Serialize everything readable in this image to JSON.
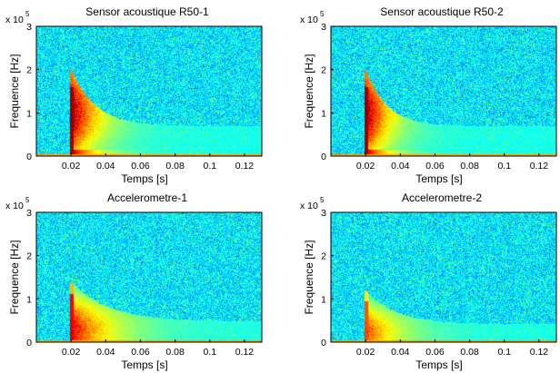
{
  "chart_data": [
    {
      "type": "heatmap",
      "title": "Sensor acoustique R50-1",
      "xlabel": "Temps [s]",
      "ylabel": "Frequence [Hz]",
      "x_ticks": [
        "0.02",
        "0.04",
        "0.06",
        "0.08",
        "0.1",
        "0.12"
      ],
      "y_ticks": [
        "0",
        "1",
        "2",
        "3"
      ],
      "y_multiplier": "x 10",
      "y_multiplier_exp": "5",
      "xlim": [
        0,
        0.13
      ],
      "ylim": [
        0,
        300000
      ],
      "burst": {
        "onset_s": 0.02,
        "peak_freq_hz": 100000,
        "max_freq_hz": 200000,
        "decay_end_s": 0.06,
        "intensity": 1.0
      }
    },
    {
      "type": "heatmap",
      "title": "Sensor acoustique R50-2",
      "xlabel": "Temps [s]",
      "ylabel": "Frequence [Hz]",
      "x_ticks": [
        "0.02",
        "0.04",
        "0.06",
        "0.08",
        "0.1",
        "0.12"
      ],
      "y_ticks": [
        "0",
        "1",
        "2",
        "3"
      ],
      "y_multiplier": "x 10",
      "y_multiplier_exp": "5",
      "xlim": [
        0,
        0.13
      ],
      "ylim": [
        0,
        300000
      ],
      "burst": {
        "onset_s": 0.02,
        "peak_freq_hz": 100000,
        "max_freq_hz": 200000,
        "decay_end_s": 0.055,
        "intensity": 1.0
      }
    },
    {
      "type": "heatmap",
      "title": "Accelerometre-1",
      "xlabel": "Temps [s]",
      "ylabel": "Frequence [Hz]",
      "x_ticks": [
        "0.02",
        "0.04",
        "0.06",
        "0.08",
        "0.1",
        "0.12"
      ],
      "y_ticks": [
        "0",
        "1",
        "2",
        "3"
      ],
      "y_multiplier": "x 10",
      "y_multiplier_exp": "5",
      "xlim": [
        0,
        0.13
      ],
      "ylim": [
        0,
        300000
      ],
      "burst": {
        "onset_s": 0.02,
        "peak_freq_hz": 30000,
        "max_freq_hz": 140000,
        "decay_end_s": 0.08,
        "intensity": 0.85
      }
    },
    {
      "type": "heatmap",
      "title": "Accelerometre-2",
      "xlabel": "Temps [s]",
      "ylabel": "Frequence [Hz]",
      "x_ticks": [
        "0.02",
        "0.04",
        "0.06",
        "0.08",
        "0.1",
        "0.12"
      ],
      "y_ticks": [
        "0",
        "1",
        "2",
        "3"
      ],
      "y_multiplier": "x 10",
      "y_multiplier_exp": "5",
      "xlim": [
        0,
        0.13
      ],
      "ylim": [
        0,
        300000
      ],
      "burst": {
        "onset_s": 0.02,
        "peak_freq_hz": 25000,
        "max_freq_hz": 120000,
        "decay_end_s": 0.07,
        "intensity": 0.7
      }
    }
  ],
  "colormap": "jet"
}
